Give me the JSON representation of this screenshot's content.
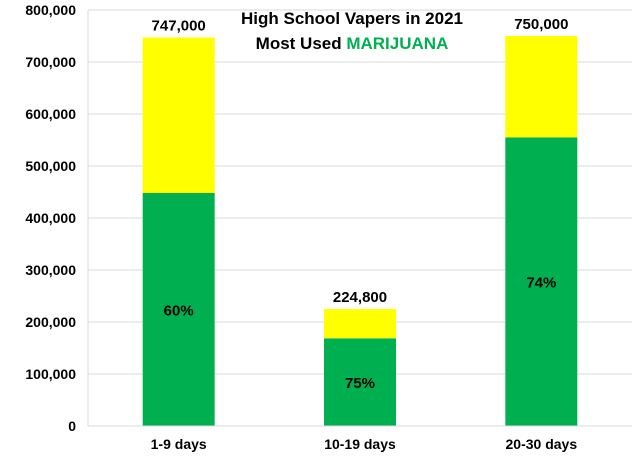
{
  "chart_data": {
    "type": "bar",
    "stacked": true,
    "title_line1": "High School Vapers in 2021",
    "title_line2_prefix": "Most Used ",
    "title_line2_highlight": "MARIJUANA",
    "categories": [
      "1-9 days",
      "10-19 days",
      "20-30 days"
    ],
    "series": [
      {
        "values": [
          448200,
          168600,
          555000
        ],
        "color": "#00b050"
      },
      {
        "values": [
          298800,
          56200,
          195000
        ],
        "color": "#ffff00"
      }
    ],
    "totals": [
      747000,
      224800,
      750000
    ],
    "total_labels": [
      "747,000",
      "224,800",
      "750,000"
    ],
    "percent_labels": [
      "60%",
      "75%",
      "74%"
    ],
    "ylim": [
      0,
      800000
    ],
    "yticks": [
      0,
      100000,
      200000,
      300000,
      400000,
      500000,
      600000,
      700000,
      800000
    ],
    "ytick_labels": [
      "0",
      "100,000",
      "200,000",
      "300,000",
      "400,000",
      "500,000",
      "600,000",
      "700,000",
      "800,000"
    ],
    "grid": true,
    "legend": "none",
    "colors": {
      "marijuana": "#00b050",
      "other": "#ffff00",
      "title_accent": "#00b050"
    }
  }
}
